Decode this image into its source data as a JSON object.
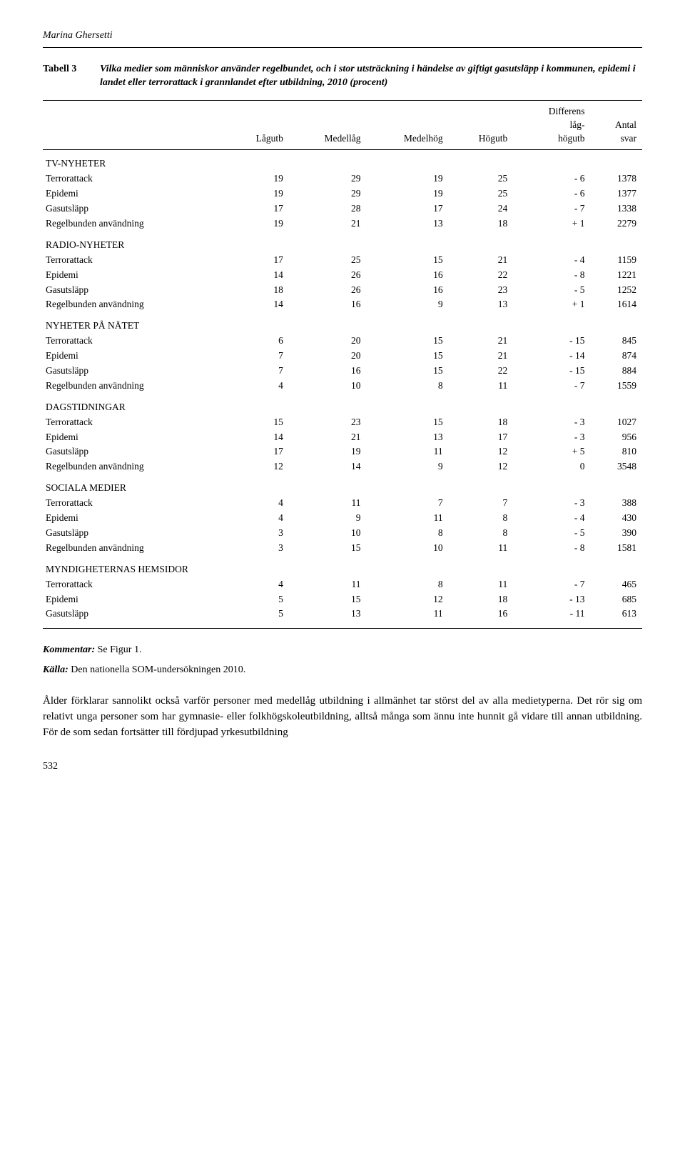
{
  "author": "Marina Ghersetti",
  "table": {
    "label": "Tabell 3",
    "title": "Vilka medier som människor använder regelbundet, och i stor utsträckning i händelse av giftigt gasutsläpp i kommunen, epidemi i landet eller terrorattack i grannlandet efter utbildning, 2010 (procent)",
    "columns": [
      "",
      "Lågutb",
      "Medellåg",
      "Medelhög",
      "Högutb",
      "Differens\nlåg-\nhögutb",
      "Antal\nsvar"
    ],
    "sections": [
      {
        "name": "TV-NYHETER",
        "rows": [
          [
            "Terrorattack",
            19,
            29,
            19,
            25,
            "- 6",
            1378
          ],
          [
            "Epidemi",
            19,
            29,
            19,
            25,
            "- 6",
            1377
          ],
          [
            "Gasutsläpp",
            17,
            28,
            17,
            24,
            "- 7",
            1338
          ],
          [
            "Regelbunden användning",
            19,
            21,
            13,
            18,
            "+ 1",
            2279
          ]
        ]
      },
      {
        "name": "RADIO-NYHETER",
        "rows": [
          [
            "Terrorattack",
            17,
            25,
            15,
            21,
            "- 4",
            1159
          ],
          [
            "Epidemi",
            14,
            26,
            16,
            22,
            "- 8",
            1221
          ],
          [
            "Gasutsläpp",
            18,
            26,
            16,
            23,
            "- 5",
            1252
          ],
          [
            "Regelbunden användning",
            14,
            16,
            9,
            13,
            "+ 1",
            1614
          ]
        ]
      },
      {
        "name": "NYHETER PÅ NÄTET",
        "rows": [
          [
            "Terrorattack",
            6,
            20,
            15,
            21,
            "- 15",
            845
          ],
          [
            "Epidemi",
            7,
            20,
            15,
            21,
            "- 14",
            874
          ],
          [
            "Gasutsläpp",
            7,
            16,
            15,
            22,
            "- 15",
            884
          ],
          [
            "Regelbunden användning",
            4,
            10,
            8,
            11,
            "- 7",
            1559
          ]
        ]
      },
      {
        "name": "DAGSTIDNINGAR",
        "rows": [
          [
            "Terrorattack",
            15,
            23,
            15,
            18,
            "- 3",
            1027
          ],
          [
            "Epidemi",
            14,
            21,
            13,
            17,
            "- 3",
            956
          ],
          [
            "Gasutsläpp",
            17,
            19,
            11,
            12,
            "+ 5",
            810
          ],
          [
            "Regelbunden användning",
            12,
            14,
            9,
            12,
            "0",
            3548
          ]
        ]
      },
      {
        "name": "SOCIALA MEDIER",
        "rows": [
          [
            "Terrorattack",
            4,
            11,
            7,
            7,
            "- 3",
            388
          ],
          [
            "Epidemi",
            4,
            9,
            11,
            8,
            "- 4",
            430
          ],
          [
            "Gasutsläpp",
            3,
            10,
            8,
            8,
            "- 5",
            390
          ],
          [
            "Regelbunden användning",
            3,
            15,
            10,
            11,
            "- 8",
            1581
          ]
        ]
      },
      {
        "name": "MYNDIGHETERNAS HEMSIDOR",
        "rows": [
          [
            "Terrorattack",
            4,
            11,
            8,
            11,
            "- 7",
            465
          ],
          [
            "Epidemi",
            5,
            15,
            12,
            18,
            "- 13",
            685
          ],
          [
            "Gasutsläpp",
            5,
            13,
            11,
            16,
            "- 11",
            613
          ]
        ]
      }
    ]
  },
  "kommentar_label": "Kommentar:",
  "kommentar_text": " Se Figur 1.",
  "kalla_label": "Källa:",
  "kalla_text": " Den nationella SOM-undersökningen 2010.",
  "paragraph": "Ålder förklarar sannolikt också varför personer med medellåg utbildning i allmänhet tar störst del av alla medietyperna. Det rör sig om relativt unga personer som har gymnasie- eller folkhögskoleutbildning, alltså många som ännu inte hunnit gå vidare till annan utbildning. För de som sedan fortsätter till fördjupad yrkesutbildning",
  "page": "532"
}
